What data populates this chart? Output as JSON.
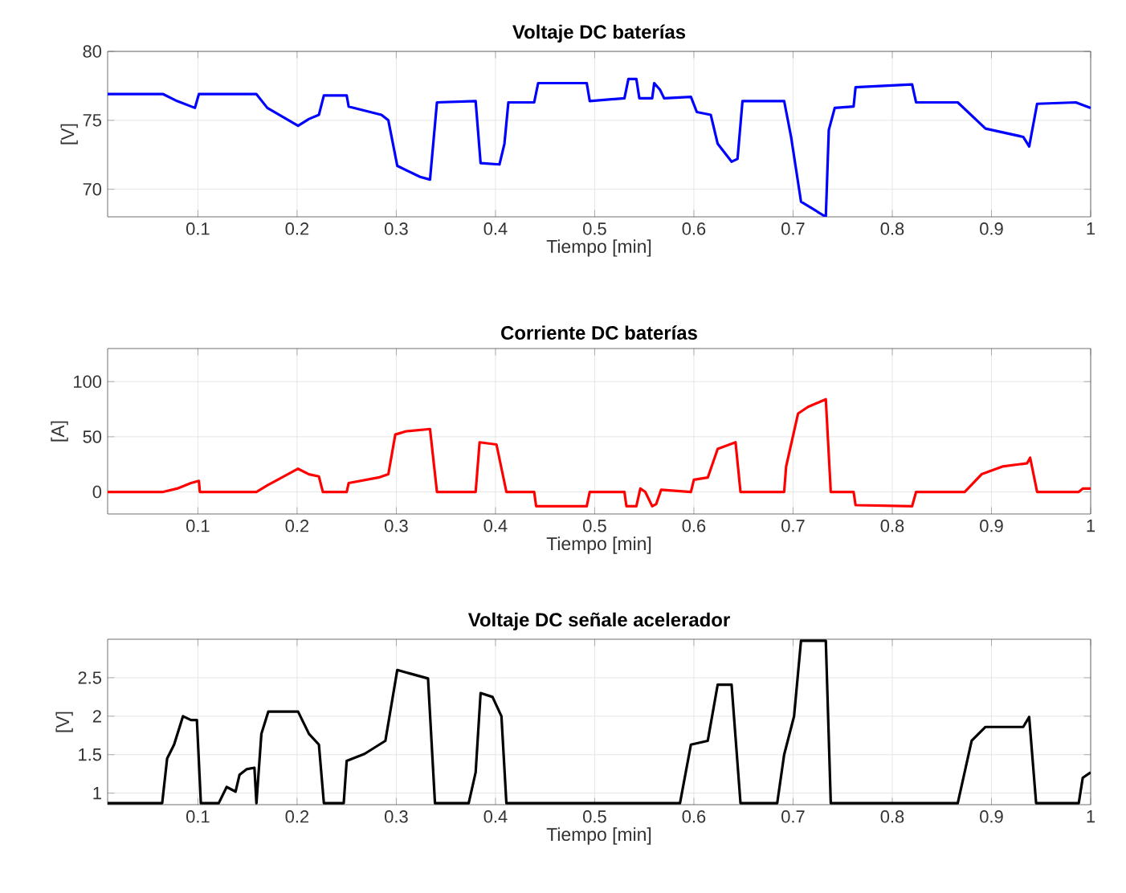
{
  "chart_data": [
    {
      "type": "line",
      "title": "Voltaje DC baterías",
      "xlabel": "Tiempo [min]",
      "ylabel": "[V]",
      "xlim": [
        0.009,
        1
      ],
      "ylim": [
        68,
        80
      ],
      "xticks": [
        0.1,
        0.2,
        0.3,
        0.4,
        0.5,
        0.6,
        0.7,
        0.8,
        0.9,
        1
      ],
      "yticks": [
        70,
        75,
        80
      ],
      "grid": true,
      "x": [
        0.009,
        0.065,
        0.079,
        0.097,
        0.101,
        0.159,
        0.17,
        0.201,
        0.212,
        0.222,
        0.227,
        0.25,
        0.252,
        0.285,
        0.292,
        0.301,
        0.324,
        0.334,
        0.341,
        0.38,
        0.385,
        0.404,
        0.409,
        0.413,
        0.439,
        0.443,
        0.492,
        0.495,
        0.53,
        0.534,
        0.542,
        0.545,
        0.558,
        0.56,
        0.566,
        0.57,
        0.597,
        0.603,
        0.617,
        0.624,
        0.638,
        0.644,
        0.649,
        0.691,
        0.698,
        0.708,
        0.733,
        0.736,
        0.742,
        0.761,
        0.763,
        0.82,
        0.824,
        0.866,
        0.894,
        0.932,
        0.938,
        0.946,
        0.985,
        1.0
      ],
      "series": [
        {
          "color": "#0000ff",
          "values": [
            76.9,
            76.9,
            76.4,
            75.9,
            76.9,
            76.9,
            75.9,
            74.6,
            75.1,
            75.4,
            76.8,
            76.8,
            76.0,
            75.4,
            75.0,
            71.7,
            70.9,
            70.7,
            76.3,
            76.4,
            71.9,
            71.8,
            73.3,
            76.3,
            76.3,
            77.7,
            77.7,
            76.4,
            76.6,
            78.0,
            78.0,
            76.6,
            76.6,
            77.7,
            77.2,
            76.6,
            76.7,
            75.6,
            75.4,
            73.3,
            72.0,
            72.2,
            76.4,
            76.4,
            73.8,
            69.1,
            68.0,
            74.3,
            75.9,
            76.0,
            77.4,
            77.6,
            76.3,
            76.3,
            74.4,
            73.8,
            73.1,
            76.2,
            76.3,
            75.9
          ]
        }
      ]
    },
    {
      "type": "line",
      "title": "Corriente DC baterías",
      "xlabel": "Tiempo [min]",
      "ylabel": "[A]",
      "xlim": [
        0.009,
        1
      ],
      "ylim": [
        -20,
        130
      ],
      "xticks": [
        0.1,
        0.2,
        0.3,
        0.4,
        0.5,
        0.6,
        0.7,
        0.8,
        0.9,
        1
      ],
      "yticks": [
        0,
        50,
        100
      ],
      "grid": true,
      "x": [
        0.009,
        0.065,
        0.079,
        0.093,
        0.101,
        0.102,
        0.159,
        0.17,
        0.201,
        0.212,
        0.222,
        0.226,
        0.25,
        0.252,
        0.282,
        0.292,
        0.299,
        0.31,
        0.334,
        0.341,
        0.38,
        0.384,
        0.401,
        0.411,
        0.439,
        0.441,
        0.492,
        0.495,
        0.53,
        0.532,
        0.542,
        0.546,
        0.551,
        0.558,
        0.562,
        0.567,
        0.597,
        0.6,
        0.614,
        0.624,
        0.642,
        0.647,
        0.691,
        0.693,
        0.705,
        0.715,
        0.733,
        0.738,
        0.761,
        0.763,
        0.82,
        0.824,
        0.873,
        0.89,
        0.911,
        0.936,
        0.939,
        0.946,
        0.988,
        0.992,
        1.0
      ],
      "series": [
        {
          "color": "#ff0000",
          "values": [
            0,
            0,
            3,
            8,
            10,
            0,
            0,
            6,
            21,
            16,
            14,
            0,
            0,
            8,
            13,
            16,
            52,
            55,
            57,
            0,
            0,
            45,
            43,
            0,
            0,
            -13,
            -13,
            0,
            0,
            -13,
            -13,
            3,
            0,
            -13,
            -11,
            2,
            0,
            11,
            13,
            39,
            45,
            0,
            0,
            23,
            71,
            77,
            84,
            0,
            0,
            -12,
            -13,
            0,
            0,
            16,
            23,
            26,
            31,
            0,
            0,
            3,
            3
          ]
        }
      ]
    },
    {
      "type": "line",
      "title": "Voltaje DC señale acelerador",
      "xlabel": "Tiempo [min]",
      "ylabel": "[V]",
      "xlim": [
        0.009,
        1
      ],
      "ylim": [
        0.85,
        3
      ],
      "xticks": [
        0.1,
        0.2,
        0.3,
        0.4,
        0.5,
        0.6,
        0.7,
        0.8,
        0.9,
        1
      ],
      "yticks": [
        1,
        1.5,
        2,
        2.5
      ],
      "grid": true,
      "x": [
        0.009,
        0.064,
        0.069,
        0.076,
        0.085,
        0.093,
        0.099,
        0.103,
        0.121,
        0.129,
        0.138,
        0.142,
        0.149,
        0.157,
        0.159,
        0.164,
        0.171,
        0.201,
        0.212,
        0.222,
        0.227,
        0.247,
        0.25,
        0.268,
        0.289,
        0.301,
        0.332,
        0.339,
        0.373,
        0.38,
        0.385,
        0.397,
        0.406,
        0.411,
        0.586,
        0.597,
        0.614,
        0.624,
        0.638,
        0.647,
        0.684,
        0.691,
        0.701,
        0.708,
        0.733,
        0.738,
        0.866,
        0.88,
        0.894,
        0.932,
        0.938,
        0.945,
        0.988,
        0.992,
        1.0
      ],
      "series": [
        {
          "color": "#000000",
          "values": [
            0.87,
            0.87,
            1.45,
            1.63,
            2.0,
            1.95,
            1.95,
            0.87,
            0.87,
            1.08,
            1.02,
            1.24,
            1.31,
            1.33,
            0.87,
            1.77,
            2.06,
            2.06,
            1.77,
            1.63,
            0.87,
            0.87,
            1.42,
            1.51,
            1.68,
            2.6,
            2.49,
            0.87,
            0.87,
            1.27,
            2.3,
            2.25,
            2.0,
            0.87,
            0.87,
            1.63,
            1.68,
            2.41,
            2.41,
            0.87,
            0.87,
            1.5,
            2.0,
            2.98,
            2.98,
            0.87,
            0.87,
            1.68,
            1.86,
            1.86,
            1.99,
            0.87,
            0.87,
            1.2,
            1.27
          ]
        }
      ]
    }
  ]
}
